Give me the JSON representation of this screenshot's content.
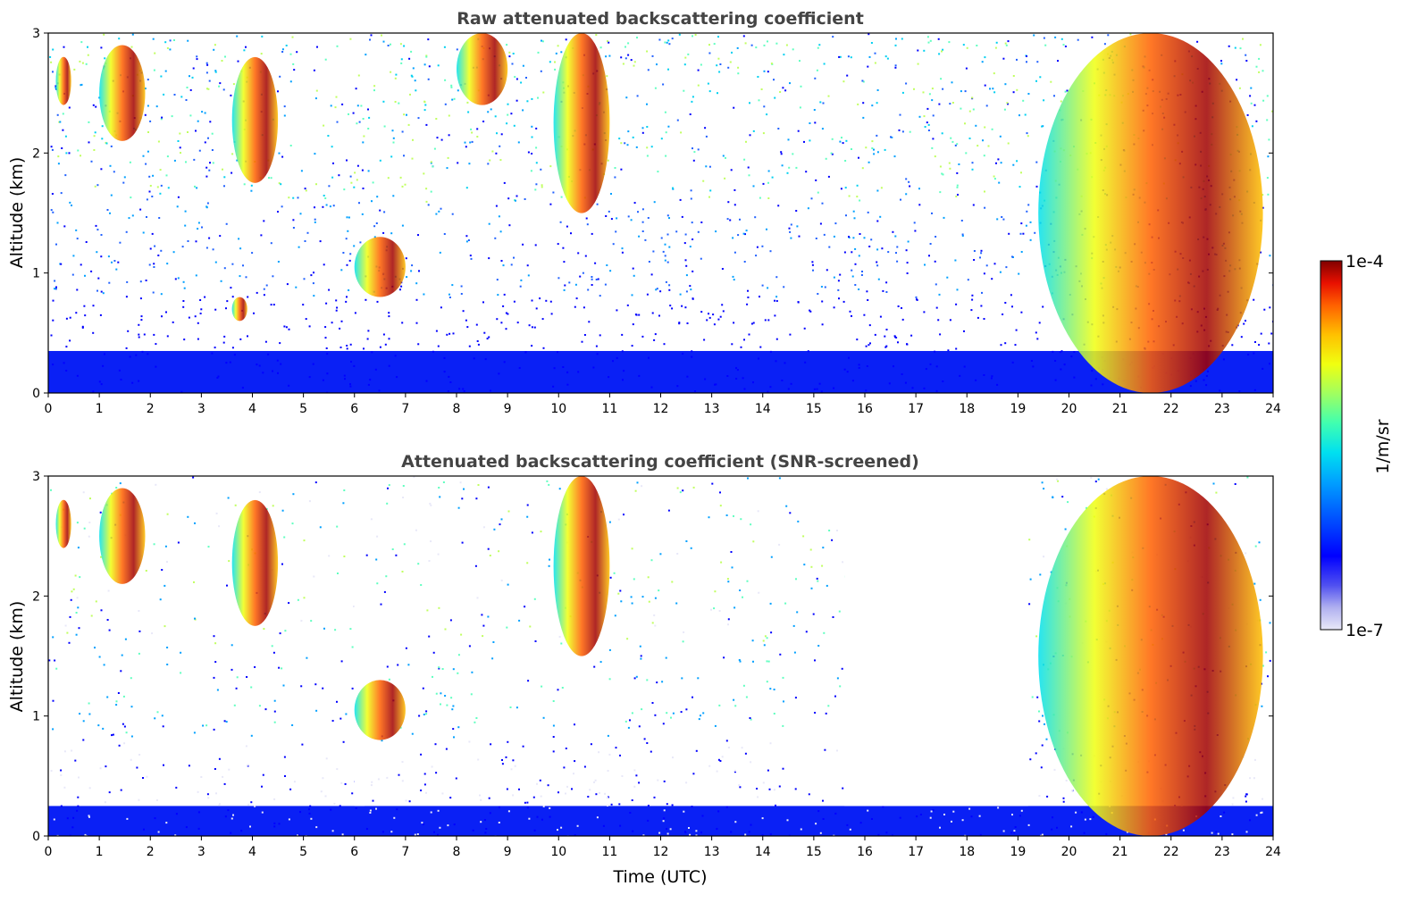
{
  "chart_data": [
    {
      "type": "heatmap",
      "title": "Raw attenuated backscattering coefficient",
      "xlabel": "",
      "ylabel": "Altitude (km)",
      "xlim": [
        0,
        24
      ],
      "ylim": [
        0,
        3
      ],
      "xticks": [
        "0",
        "1",
        "2",
        "3",
        "4",
        "5",
        "6",
        "7",
        "8",
        "9",
        "10",
        "11",
        "12",
        "13",
        "14",
        "15",
        "16",
        "17",
        "18",
        "19",
        "20",
        "21",
        "22",
        "23",
        "24"
      ],
      "yticks": [
        "0",
        "1",
        "2",
        "3"
      ],
      "noise_floor_km": 0.35,
      "cloud_features": [
        {
          "t_start": 0.15,
          "t_end": 0.45,
          "alt_low_km": 2.4,
          "alt_high_km": 2.8
        },
        {
          "t_start": 1.0,
          "t_end": 1.9,
          "alt_low_km": 2.1,
          "alt_high_km": 2.9
        },
        {
          "t_start": 3.6,
          "t_end": 4.5,
          "alt_low_km": 1.75,
          "alt_high_km": 2.8
        },
        {
          "t_start": 6.0,
          "t_end": 7.0,
          "alt_low_km": 0.8,
          "alt_high_km": 1.3
        },
        {
          "t_start": 3.6,
          "t_end": 3.9,
          "alt_low_km": 0.6,
          "alt_high_km": 0.8
        },
        {
          "t_start": 8.0,
          "t_end": 9.0,
          "alt_low_km": 2.4,
          "alt_high_km": 3.0
        },
        {
          "t_start": 9.9,
          "t_end": 11.0,
          "alt_low_km": 1.5,
          "alt_high_km": 3.0
        },
        {
          "t_start": 19.4,
          "t_end": 23.8,
          "alt_low_km": 0.0,
          "alt_high_km": 3.0
        }
      ]
    },
    {
      "type": "heatmap",
      "title": "Attenuated backscattering coefficient (SNR-screened)",
      "xlabel": "Time (UTC)",
      "ylabel": "Altitude (km)",
      "xlim": [
        0,
        24
      ],
      "ylim": [
        0,
        3
      ],
      "xticks": [
        "0",
        "1",
        "2",
        "3",
        "4",
        "5",
        "6",
        "7",
        "8",
        "9",
        "10",
        "11",
        "12",
        "13",
        "14",
        "15",
        "16",
        "17",
        "18",
        "19",
        "20",
        "21",
        "22",
        "23",
        "24"
      ],
      "yticks": [
        "0",
        "1",
        "2",
        "3"
      ],
      "screened_gaps_utc": [
        [
          6.0,
          6.2
        ],
        [
          15.6,
          17.4
        ],
        [
          17.4,
          19.2
        ]
      ],
      "cloud_features": [
        {
          "t_start": 0.15,
          "t_end": 0.45,
          "alt_low_km": 2.4,
          "alt_high_km": 2.8
        },
        {
          "t_start": 1.0,
          "t_end": 1.9,
          "alt_low_km": 2.1,
          "alt_high_km": 2.9
        },
        {
          "t_start": 3.6,
          "t_end": 4.5,
          "alt_low_km": 1.75,
          "alt_high_km": 2.8
        },
        {
          "t_start": 6.0,
          "t_end": 7.0,
          "alt_low_km": 0.8,
          "alt_high_km": 1.3
        },
        {
          "t_start": 9.9,
          "t_end": 11.0,
          "alt_low_km": 1.5,
          "alt_high_km": 3.0
        },
        {
          "t_start": 19.4,
          "t_end": 23.8,
          "alt_low_km": 0.0,
          "alt_high_km": 3.0
        }
      ]
    }
  ],
  "colorbar": {
    "label": "1/m/sr",
    "max_label": "1e-4",
    "min_label": "1e-7",
    "colors": [
      "#e8e8f8",
      "#b0b0f0",
      "#5050f0",
      "#0000ff",
      "#0050ff",
      "#00a0ff",
      "#00e0f0",
      "#40ffb0",
      "#a0ff60",
      "#f0ff10",
      "#ffc000",
      "#ff6000",
      "#e81000",
      "#a00000",
      "#800000"
    ]
  }
}
